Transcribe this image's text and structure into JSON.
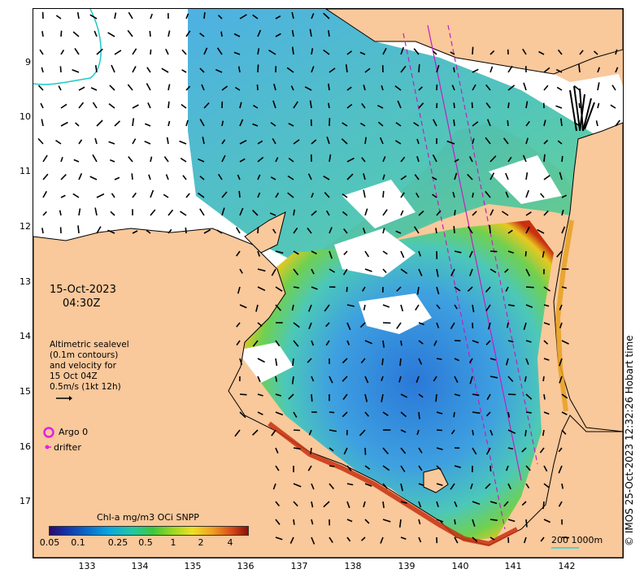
{
  "date_text": "15-Oct-2023",
  "time_text": "04:30Z",
  "legend_lines": [
    "Altimetric sealevel",
    "(0.1m contours)",
    "and velocity for",
    "15 Oct 04Z",
    "0.5m/s (1kt 12h)"
  ],
  "argo_label": "Argo 0",
  "drifter_label": "drifter",
  "colorbar": {
    "title": "Chl-a mg/m3 OCi SNPP",
    "labels": [
      "0.05",
      "0.1",
      "0.25",
      "0.5",
      "1",
      "2",
      "4"
    ]
  },
  "y_ticks": [
    "9",
    "10",
    "11",
    "12",
    "13",
    "14",
    "15",
    "16",
    "17"
  ],
  "x_ticks": [
    "133",
    "134",
    "135",
    "136",
    "137",
    "138",
    "139",
    "140",
    "141",
    "142"
  ],
  "copyright": "© IMOS 25-Oct-2023 12:32:26 Hobart time",
  "scale_label": "200  1000m",
  "colors": {
    "land": "#f9c89b",
    "argo": "#e020e0",
    "track": "#c020c0",
    "contour": "#20c8c8"
  }
}
